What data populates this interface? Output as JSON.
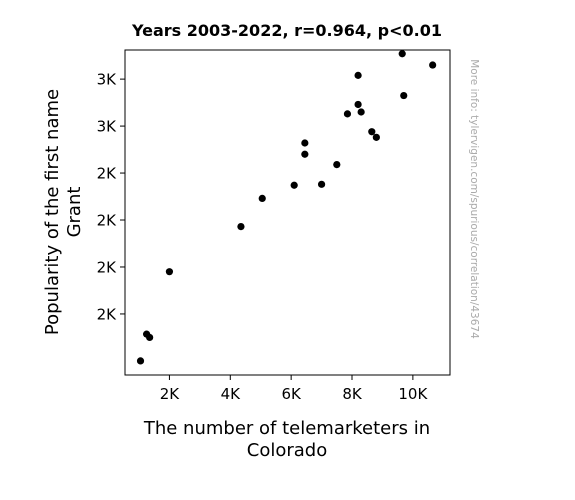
{
  "chart_data": {
    "type": "scatter",
    "title": "Years 2003-2022, r=0.964, p<0.01",
    "xlabel_lines": [
      "The number of telemarketers in",
      "Colorado"
    ],
    "ylabel_lines": [
      "Popularity of the first name",
      "Grant"
    ],
    "xlim": [
      540,
      11220
    ],
    "ylim": [
      1970,
      2662
    ],
    "x_ticks": [
      {
        "value": 2000,
        "label": "2K"
      },
      {
        "value": 4000,
        "label": "4K"
      },
      {
        "value": 6000,
        "label": "6K"
      },
      {
        "value": 8000,
        "label": "8K"
      },
      {
        "value": 10000,
        "label": "10K"
      }
    ],
    "y_ticks": [
      {
        "value": 2100,
        "label": "2K"
      },
      {
        "value": 2200,
        "label": "2K"
      },
      {
        "value": 2300,
        "label": "2K"
      },
      {
        "value": 2400,
        "label": "2K"
      },
      {
        "value": 2500,
        "label": "3K"
      },
      {
        "value": 2600,
        "label": "3K"
      }
    ],
    "grid": false,
    "point_color": "#000000",
    "points": [
      {
        "x": 1050,
        "y": 2000
      },
      {
        "x": 1250,
        "y": 2057
      },
      {
        "x": 1350,
        "y": 2050
      },
      {
        "x": 2000,
        "y": 2190
      },
      {
        "x": 4350,
        "y": 2286
      },
      {
        "x": 5050,
        "y": 2346
      },
      {
        "x": 6100,
        "y": 2374
      },
      {
        "x": 6450,
        "y": 2440
      },
      {
        "x": 6450,
        "y": 2464
      },
      {
        "x": 7000,
        "y": 2376
      },
      {
        "x": 7500,
        "y": 2418
      },
      {
        "x": 7850,
        "y": 2526
      },
      {
        "x": 8200,
        "y": 2546
      },
      {
        "x": 8300,
        "y": 2530
      },
      {
        "x": 8200,
        "y": 2608
      },
      {
        "x": 8650,
        "y": 2488
      },
      {
        "x": 8800,
        "y": 2476
      },
      {
        "x": 9650,
        "y": 2654
      },
      {
        "x": 9700,
        "y": 2565
      },
      {
        "x": 10650,
        "y": 2630
      }
    ]
  },
  "watermark": "More info: tylervigen.com/spurious/correlation/43674"
}
